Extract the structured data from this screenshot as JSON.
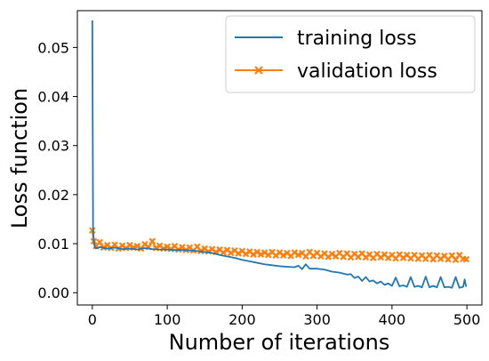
{
  "chart_data": {
    "type": "line",
    "xlabel": "Number of iterations",
    "ylabel": "Loss function",
    "xlim": [
      -20,
      520
    ],
    "ylim": [
      -0.0025,
      0.0575
    ],
    "xticks": [
      0,
      100,
      200,
      300,
      400,
      500
    ],
    "yticks": [
      0.0,
      0.01,
      0.02,
      0.03,
      0.04,
      0.05
    ],
    "ytick_labels": [
      "0.00",
      "0.01",
      "0.02",
      "0.03",
      "0.04",
      "0.05"
    ],
    "grid": false,
    "legend_position": "top-right",
    "series": [
      {
        "name": "training loss",
        "color": "#1f77b4",
        "marker": "none",
        "x": [
          0,
          1,
          2,
          3,
          4,
          5,
          10,
          20,
          30,
          40,
          50,
          60,
          70,
          80,
          90,
          100,
          110,
          120,
          130,
          140,
          150,
          160,
          170,
          180,
          190,
          200,
          210,
          220,
          230,
          240,
          250,
          260,
          270,
          275,
          280,
          285,
          290,
          300,
          310,
          320,
          330,
          340,
          345,
          350,
          355,
          360,
          365,
          370,
          375,
          380,
          385,
          390,
          395,
          400,
          405,
          410,
          415,
          420,
          425,
          430,
          435,
          440,
          445,
          450,
          455,
          460,
          465,
          470,
          475,
          480,
          485,
          490,
          495,
          497,
          499
        ],
        "y": [
          0.0555,
          0.013,
          0.0105,
          0.0095,
          0.0092,
          0.009,
          0.0093,
          0.009,
          0.0092,
          0.0089,
          0.009,
          0.0088,
          0.0091,
          0.0089,
          0.0088,
          0.0088,
          0.0087,
          0.0087,
          0.0086,
          0.0085,
          0.0083,
          0.0081,
          0.0077,
          0.0074,
          0.0071,
          0.0067,
          0.0064,
          0.0061,
          0.0058,
          0.0056,
          0.0054,
          0.0053,
          0.0052,
          0.0055,
          0.0048,
          0.0058,
          0.0049,
          0.0049,
          0.0047,
          0.0043,
          0.0041,
          0.0037,
          0.0038,
          0.003,
          0.0033,
          0.0024,
          0.0032,
          0.0023,
          0.0025,
          0.0019,
          0.0023,
          0.0016,
          0.0019,
          0.0014,
          0.0031,
          0.0013,
          0.0015,
          0.0012,
          0.0032,
          0.0012,
          0.0014,
          0.0011,
          0.0033,
          0.0011,
          0.0014,
          0.0011,
          0.0032,
          0.0011,
          0.0012,
          0.001,
          0.0032,
          0.001,
          0.0012,
          0.0027,
          0.0012
        ]
      },
      {
        "name": "validation loss",
        "color": "#ff7f0e",
        "marker": "x",
        "x": [
          0,
          2,
          5,
          10,
          15,
          20,
          25,
          30,
          35,
          40,
          45,
          50,
          55,
          60,
          65,
          70,
          75,
          80,
          85,
          90,
          95,
          100,
          105,
          110,
          115,
          120,
          125,
          130,
          135,
          140,
          145,
          150,
          155,
          160,
          165,
          170,
          175,
          180,
          185,
          190,
          195,
          200,
          205,
          210,
          215,
          220,
          225,
          230,
          235,
          240,
          245,
          250,
          255,
          260,
          265,
          270,
          275,
          280,
          285,
          290,
          295,
          300,
          305,
          310,
          315,
          320,
          325,
          330,
          335,
          340,
          345,
          350,
          355,
          360,
          365,
          370,
          375,
          380,
          385,
          390,
          395,
          400,
          405,
          410,
          415,
          420,
          425,
          430,
          435,
          440,
          445,
          450,
          455,
          460,
          465,
          470,
          475,
          480,
          485,
          490,
          495,
          499
        ],
        "y": [
          0.0127,
          0.0105,
          0.0095,
          0.0103,
          0.0092,
          0.0097,
          0.0091,
          0.0098,
          0.009,
          0.0096,
          0.0091,
          0.0097,
          0.0092,
          0.0095,
          0.009,
          0.0099,
          0.0093,
          0.0105,
          0.0091,
          0.0096,
          0.009,
          0.0094,
          0.0089,
          0.0095,
          0.0088,
          0.0093,
          0.0087,
          0.0092,
          0.0086,
          0.0094,
          0.0085,
          0.009,
          0.0084,
          0.0089,
          0.0083,
          0.0088,
          0.0082,
          0.0087,
          0.0081,
          0.0086,
          0.008,
          0.0085,
          0.0079,
          0.0084,
          0.0078,
          0.0083,
          0.0078,
          0.0082,
          0.0077,
          0.0083,
          0.0076,
          0.0082,
          0.0076,
          0.0081,
          0.0075,
          0.0082,
          0.0077,
          0.0081,
          0.0074,
          0.0083,
          0.0075,
          0.0081,
          0.0074,
          0.008,
          0.0073,
          0.0079,
          0.0074,
          0.0081,
          0.0073,
          0.008,
          0.0072,
          0.0079,
          0.0073,
          0.008,
          0.0072,
          0.0078,
          0.0071,
          0.0079,
          0.0072,
          0.0078,
          0.0071,
          0.0077,
          0.007,
          0.0078,
          0.0071,
          0.0077,
          0.007,
          0.0077,
          0.0069,
          0.0076,
          0.0069,
          0.0077,
          0.0068,
          0.0076,
          0.0069,
          0.0075,
          0.0068,
          0.0076,
          0.0067,
          0.0077,
          0.0069,
          0.0068
        ]
      }
    ]
  }
}
